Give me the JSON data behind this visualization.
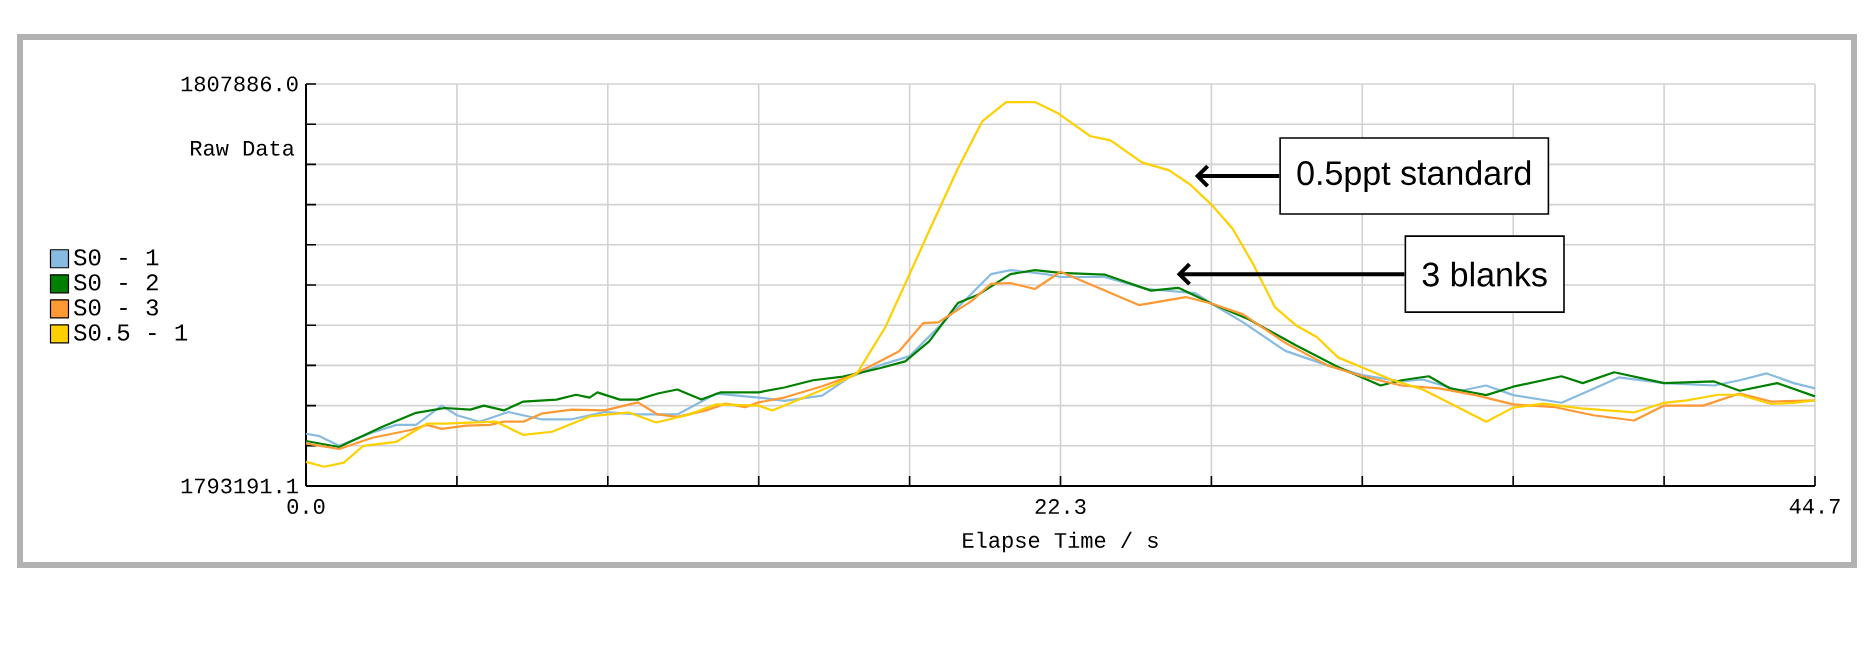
{
  "chart_data": {
    "type": "line",
    "xlabel": "Elapse Time / s",
    "ylabel": "Raw Data",
    "xlim": [
      0,
      44.7
    ],
    "ylim": [
      1793191.1,
      1807886.0
    ],
    "xticks": [
      {
        "value": 0,
        "label": "0.0"
      },
      {
        "value": 4.47,
        "label": null
      },
      {
        "value": 8.94,
        "label": null
      },
      {
        "value": 13.41,
        "label": null
      },
      {
        "value": 17.88,
        "label": null
      },
      {
        "value": 22.35,
        "label": "22.3"
      },
      {
        "value": 26.82,
        "label": null
      },
      {
        "value": 31.29,
        "label": null
      },
      {
        "value": 35.76,
        "label": null
      },
      {
        "value": 40.23,
        "label": null
      },
      {
        "value": 44.7,
        "label": "44.7"
      }
    ],
    "yticks": [
      {
        "value": 1793191.1,
        "label": "1793191.1"
      },
      {
        "value": 1794660.59,
        "label": null
      },
      {
        "value": 1796130.08,
        "label": null
      },
      {
        "value": 1797599.57,
        "label": null
      },
      {
        "value": 1799069.06,
        "label": null
      },
      {
        "value": 1800538.55,
        "label": null
      },
      {
        "value": 1802008.04,
        "label": null
      },
      {
        "value": 1803477.53,
        "label": null
      },
      {
        "value": 1804947.02,
        "label": null
      },
      {
        "value": 1806416.51,
        "label": null
      },
      {
        "value": 1807886.0,
        "label": "1807886.0"
      }
    ],
    "grid": true,
    "legend": "left",
    "line_style": "solid",
    "series": [
      {
        "name": "S0 - 1",
        "color": "#88bbe0",
        "x": [
          0,
          0.4,
          0.98,
          1.97,
          2.68,
          3.26,
          4.02,
          4.47,
          5.14,
          5.99,
          6.97,
          7.87,
          8.85,
          9.83,
          11.0,
          12.16,
          13.41,
          14.17,
          15.29,
          16.09,
          16.99,
          17.88,
          18.73,
          19.44,
          20.29,
          20.87,
          21.9,
          22.35,
          23.65,
          24.9,
          26.33,
          26.82,
          27.76,
          29.01,
          30.26,
          31.29,
          32.45,
          33.08,
          34.2,
          34.96,
          35.76,
          37.19,
          37.82,
          38.89,
          40.23,
          41.71,
          42.47,
          43.27,
          44.07,
          44.7
        ],
        "values": [
          1795101,
          1795013,
          1794661,
          1795145,
          1795425,
          1795425,
          1796130,
          1795777,
          1795542,
          1795895,
          1795630,
          1795630,
          1795895,
          1795807,
          1795807,
          1796571,
          1796424,
          1796306,
          1796497,
          1797159,
          1797600,
          1797938,
          1798996,
          1799877,
          1800935,
          1801083,
          1800935,
          1800832,
          1800832,
          1800392,
          1800245,
          1799862,
          1799172,
          1798129,
          1797600,
          1797247,
          1797012,
          1797085,
          1796674,
          1796865,
          1796512,
          1796233,
          1796571,
          1797159,
          1796953,
          1796865,
          1797056,
          1797306,
          1796953,
          1796762
        ]
      },
      {
        "name": "S0 - 2",
        "color": "#008000",
        "x": [
          0,
          0.98,
          1.56,
          2.28,
          3.26,
          4.11,
          4.87,
          5.27,
          5.86,
          6.44,
          7.42,
          8.0,
          8.4,
          8.63,
          9.3,
          9.83,
          10.42,
          11.0,
          11.71,
          12.29,
          13.41,
          14.17,
          15.02,
          15.91,
          16.99,
          17.75,
          18.46,
          19.31,
          19.89,
          20.87,
          21.59,
          22.35,
          23.65,
          25.03,
          25.84,
          26.82,
          27.94,
          29.32,
          30.57,
          31.83,
          32.45,
          33.26,
          33.88,
          34.96,
          35.76,
          37.19,
          37.82,
          38.75,
          40.23,
          41.71,
          42.47,
          43.58,
          44.7
        ],
        "values": [
          1794837,
          1794616,
          1794954,
          1795366,
          1795865,
          1796042,
          1795983,
          1796130,
          1795954,
          1796277,
          1796350,
          1796527,
          1796424,
          1796615,
          1796350,
          1796350,
          1796571,
          1796718,
          1796350,
          1796615,
          1796615,
          1796791,
          1797056,
          1797188,
          1797497,
          1797746,
          1798481,
          1799877,
          1800171,
          1800935,
          1801083,
          1800980,
          1800921,
          1800333,
          1800436,
          1799862,
          1799275,
          1798334,
          1797541,
          1796865,
          1797056,
          1797203,
          1796762,
          1796512,
          1796821,
          1797203,
          1796953,
          1797350,
          1796953,
          1797012,
          1796674,
          1796953,
          1796468
        ]
      },
      {
        "name": "S0 - 3",
        "color": "#ff9933",
        "x": [
          0,
          0.98,
          1.97,
          3.13,
          3.58,
          4.02,
          4.74,
          5.45,
          5.86,
          6.44,
          6.97,
          7.87,
          8.85,
          9.83,
          10.42,
          11.0,
          11.85,
          12.43,
          13.01,
          13.41,
          14.17,
          15.29,
          16.09,
          16.99,
          17.57,
          18.28,
          18.73,
          19.71,
          20.29,
          20.87,
          21.59,
          22.35,
          23.47,
          24.67,
          26.06,
          26.82,
          27.76,
          29.01,
          30.26,
          31.29,
          32.45,
          33.57,
          34.64,
          35.76,
          37.01,
          38.13,
          39.34,
          40.23,
          41.39,
          42.47,
          43.4,
          44.7
        ],
        "values": [
          1794749,
          1794543,
          1794954,
          1795248,
          1795425,
          1795278,
          1795395,
          1795425,
          1795542,
          1795542,
          1795836,
          1795983,
          1795954,
          1796248,
          1795807,
          1795719,
          1795954,
          1796203,
          1796071,
          1796248,
          1796424,
          1796835,
          1797188,
          1797746,
          1798114,
          1799142,
          1799172,
          1799951,
          1800583,
          1800612,
          1800392,
          1801023,
          1800436,
          1799804,
          1800098,
          1799862,
          1799466,
          1798422,
          1797600,
          1797203,
          1796865,
          1796762,
          1796512,
          1796174,
          1796071,
          1795777,
          1795586,
          1796130,
          1796130,
          1796571,
          1796277,
          1796321
        ]
      },
      {
        "name": "S0.5 - 1",
        "color": "#ffd000",
        "x": [
          0,
          0.54,
          1.12,
          1.7,
          2.68,
          3.58,
          4.11,
          5.63,
          6.44,
          7.29,
          8.4,
          9.57,
          10.37,
          11.31,
          12.16,
          13.41,
          13.81,
          14.75,
          15.6,
          16.32,
          17.16,
          17.88,
          18.46,
          19.31,
          20.03,
          20.74,
          21.59,
          22.26,
          23.24,
          23.83,
          24.76,
          25.57,
          26.19,
          26.82,
          27.45,
          28.07,
          28.7,
          29.32,
          29.95,
          30.57,
          31.29,
          32.14,
          33.08,
          34.02,
          34.96,
          35.76,
          36.65,
          37.77,
          39.34,
          40.23,
          40.9,
          41.84,
          42.47,
          43.4,
          44.07,
          44.7
        ],
        "values": [
          1794073,
          1793896,
          1794043,
          1794661,
          1794807,
          1795469,
          1795469,
          1795542,
          1795057,
          1795175,
          1795733,
          1795880,
          1795513,
          1795792,
          1796174,
          1796130,
          1795954,
          1796424,
          1796865,
          1797306,
          1798996,
          1800935,
          1802522,
          1804800,
          1806519,
          1807225,
          1807225,
          1806828,
          1805975,
          1805828,
          1805021,
          1804727,
          1804212,
          1803478,
          1802596,
          1801273,
          1799730,
          1799069,
          1798628,
          1797893,
          1797526,
          1797085,
          1796718,
          1796130,
          1795542,
          1796057,
          1796203,
          1796027,
          1795880,
          1796233,
          1796321,
          1796527,
          1796527,
          1796189,
          1796233,
          1796321
        ]
      }
    ],
    "annotations": [
      "0.5ppt standard",
      "3 blanks"
    ]
  }
}
